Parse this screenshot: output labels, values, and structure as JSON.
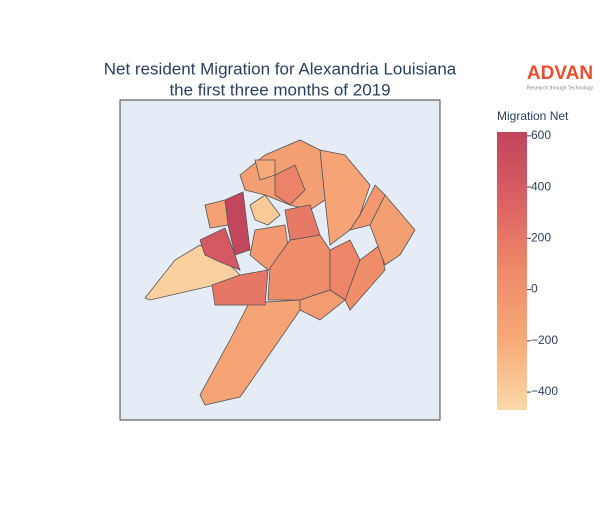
{
  "chart_data": {
    "type": "choropleth",
    "title": "Net resident Migration for Alexandria Louisiana",
    "subtitle": "the first three months of 2019",
    "logo": "ADVAN",
    "logo_tagline": "Research through Technology",
    "colorbar_title": "Migration Net",
    "colorscale": [
      "#fcd9a8",
      "#f7a979",
      "#ef8a6a",
      "#dc6163",
      "#c1445e"
    ],
    "zlim": [
      -470,
      615
    ],
    "zticks": [
      600,
      400,
      200,
      0,
      {
        "value": -200,
        "label": "−200"
      },
      {
        "value": -400,
        "label": "−400"
      }
    ],
    "values": [
      -150,
      -420,
      600,
      420,
      -380,
      -50,
      200,
      50,
      100,
      50,
      -100,
      -150,
      -100,
      120,
      180,
      -50,
      -120,
      -200,
      -80
    ]
  }
}
